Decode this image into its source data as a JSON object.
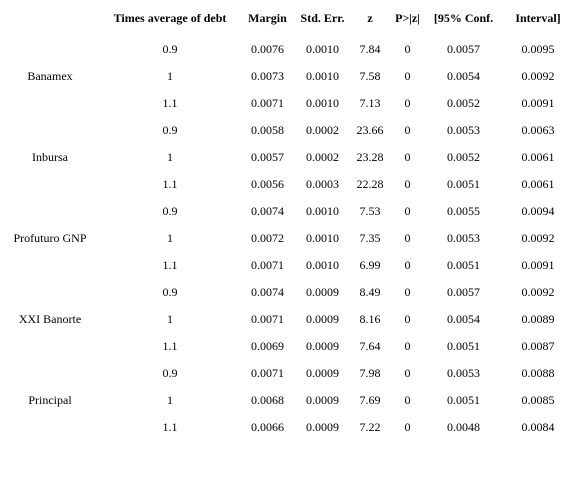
{
  "table": {
    "headers": [
      "",
      "Times average of debt",
      "Margin",
      "Std. Err.",
      "z",
      "P>|z|",
      "[95% Conf.",
      "Interval]"
    ],
    "groups": [
      {
        "name": "Banamex",
        "rows": [
          [
            "0.9",
            "0.0076",
            "0.0010",
            "7.84",
            "0",
            "0.0057",
            "0.0095"
          ],
          [
            "1",
            "0.0073",
            "0.0010",
            "7.58",
            "0",
            "0.0054",
            "0.0092"
          ],
          [
            "1.1",
            "0.0071",
            "0.0010",
            "7.13",
            "0",
            "0.0052",
            "0.0091"
          ]
        ]
      },
      {
        "name": "Inbursa",
        "rows": [
          [
            "0.9",
            "0.0058",
            "0.0002",
            "23.66",
            "0",
            "0.0053",
            "0.0063"
          ],
          [
            "1",
            "0.0057",
            "0.0002",
            "23.28",
            "0",
            "0.0052",
            "0.0061"
          ],
          [
            "1.1",
            "0.0056",
            "0.0003",
            "22.28",
            "0",
            "0.0051",
            "0.0061"
          ]
        ]
      },
      {
        "name": "Profuturo GNP",
        "rows": [
          [
            "0.9",
            "0.0074",
            "0.0010",
            "7.53",
            "0",
            "0.0055",
            "0.0094"
          ],
          [
            "1",
            "0.0072",
            "0.0010",
            "7.35",
            "0",
            "0.0053",
            "0.0092"
          ],
          [
            "1.1",
            "0.0071",
            "0.0010",
            "6.99",
            "0",
            "0.0051",
            "0.0091"
          ]
        ]
      },
      {
        "name": "XXI Banorte",
        "rows": [
          [
            "0.9",
            "0.0074",
            "0.0009",
            "8.49",
            "0",
            "0.0057",
            "0.0092"
          ],
          [
            "1",
            "0.0071",
            "0.0009",
            "8.16",
            "0",
            "0.0054",
            "0.0089"
          ],
          [
            "1.1",
            "0.0069",
            "0.0009",
            "7.64",
            "0",
            "0.0051",
            "0.0087"
          ]
        ]
      },
      {
        "name": "Principal",
        "rows": [
          [
            "0.9",
            "0.0071",
            "0.0009",
            "7.98",
            "0",
            "0.0053",
            "0.0088"
          ],
          [
            "1",
            "0.0068",
            "0.0009",
            "7.69",
            "0",
            "0.0051",
            "0.0085"
          ],
          [
            "1.1",
            "0.0066",
            "0.0009",
            "7.22",
            "0",
            "0.0048",
            "0.0084"
          ]
        ]
      }
    ]
  }
}
